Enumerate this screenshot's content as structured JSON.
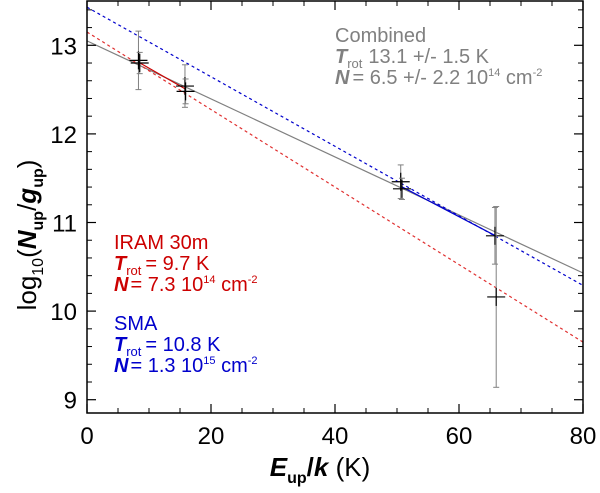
{
  "chart_data": {
    "type": "scatter",
    "title": "",
    "xlabel": "E_up/k (K)",
    "ylabel": "log10(N_up/g_up)",
    "xlim": [
      0,
      80
    ],
    "ylim": [
      8.85,
      13.5
    ],
    "x_ticks": [
      "0",
      "20",
      "40",
      "60",
      "80"
    ],
    "y_ticks": [
      "9",
      "10",
      "11",
      "12",
      "13"
    ],
    "points": [
      {
        "x": 8.3,
        "y": 12.83,
        "err": 0.33
      },
      {
        "x": 8.5,
        "y": 12.8,
        "err": 0.12
      },
      {
        "x": 15.8,
        "y": 12.54,
        "err": 0.24
      },
      {
        "x": 15.9,
        "y": 12.48,
        "err": 0.14
      },
      {
        "x": 50.6,
        "y": 11.46,
        "err": 0.19
      },
      {
        "x": 50.8,
        "y": 11.38,
        "err": 0.12
      },
      {
        "x": 65.8,
        "y": 10.85,
        "err": 0.32
      },
      {
        "x": 66.0,
        "y": 10.16,
        "err": 1.02
      }
    ],
    "fits": [
      {
        "name": "Combined",
        "color": "#808080",
        "style": "solid",
        "x": [
          0,
          80
        ],
        "y": [
          13.05,
          10.43
        ]
      },
      {
        "name": "SMA",
        "color": "#0000cc",
        "style": "dashed",
        "x": [
          0,
          80
        ],
        "y": [
          13.43,
          10.29
        ]
      },
      {
        "name": "IRAM 30m",
        "color": "#e03030",
        "style": "dashed",
        "x": [
          0,
          80
        ],
        "y": [
          13.15,
          9.65
        ]
      },
      {
        "name": "IRAM 30m segment",
        "color": "#cc0000",
        "style": "solid",
        "x": [
          8.3,
          15.8
        ],
        "y": [
          12.81,
          12.51
        ]
      },
      {
        "name": "SMA segment",
        "color": "#0000cc",
        "style": "solid",
        "x": [
          50.6,
          65.9
        ],
        "y": [
          11.41,
          10.85
        ]
      }
    ],
    "annotations": {
      "combined": {
        "title": "Combined",
        "trot_label": "T",
        "trot_sub": "rot",
        "trot_value": "13.1 +/- 1.5 K",
        "n_label": "N",
        "n_value": "= 6.5 +/-  2.2 10",
        "n_exp": "14",
        "n_unit": " cm",
        "n_unit_exp": "-2"
      },
      "iram": {
        "title": "IRAM 30m",
        "trot_label": "T",
        "trot_sub": "rot",
        "trot_value": "=   9.7 K",
        "n_label": "N",
        "n_value": "= 7.3 10",
        "n_exp": "14",
        "n_unit": " cm",
        "n_unit_exp": "-2"
      },
      "sma": {
        "title": "SMA",
        "trot_label": "T",
        "trot_sub": "rot",
        "trot_value": "=  10.8 K",
        "n_label": "N",
        "n_value": "= 1.3 10",
        "n_exp": "15",
        "n_unit": " cm",
        "n_unit_exp": "-2"
      }
    }
  },
  "colors": {
    "combined": "#808080",
    "iram": "#cc0000",
    "iram_fit": "#e03030",
    "sma": "#0000cc",
    "axis": "#000000"
  }
}
